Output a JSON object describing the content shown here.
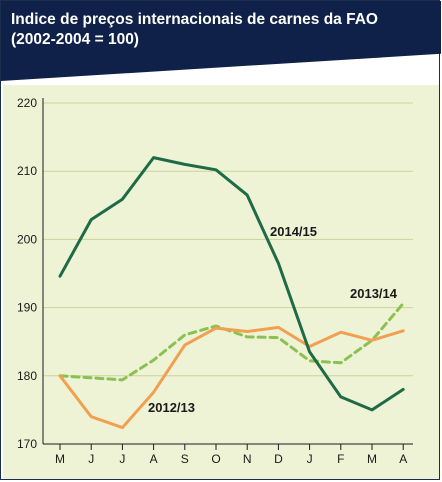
{
  "chart_data": {
    "type": "line",
    "title": "Indice de preços internacionais de carnes da FAO",
    "subtitle": "(2002-2004 = 100)",
    "categories": [
      "M",
      "J",
      "J",
      "A",
      "S",
      "O",
      "N",
      "D",
      "J",
      "F",
      "M",
      "A"
    ],
    "ylim": [
      170,
      220
    ],
    "yticks": [
      170,
      180,
      190,
      200,
      210,
      220
    ],
    "grid": true,
    "series": [
      {
        "name": "2014/15",
        "color": "#1e6b46",
        "style": "solid",
        "values": [
          194.6,
          202.9,
          205.9,
          212.0,
          211.0,
          210.2,
          206.5,
          196.5,
          183.5,
          176.9,
          175.0,
          178.0
        ]
      },
      {
        "name": "2013/14",
        "color": "#8cc152",
        "style": "dashed",
        "values": [
          180.0,
          179.7,
          179.4,
          182.3,
          186.0,
          187.3,
          185.7,
          185.6,
          182.2,
          181.9,
          185.2,
          190.6
        ]
      },
      {
        "name": "2012/13",
        "color": "#f0a050",
        "style": "solid",
        "values": [
          180.0,
          174.0,
          172.4,
          177.6,
          184.5,
          187.0,
          186.5,
          187.1,
          184.3,
          186.4,
          185.2,
          186.6
        ]
      }
    ]
  }
}
